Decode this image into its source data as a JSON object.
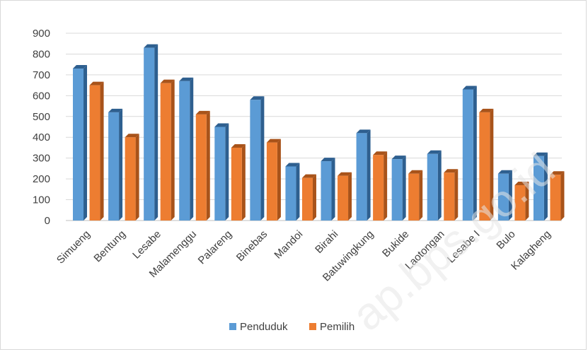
{
  "chart_data": {
    "type": "bar",
    "categories": [
      "Simueng",
      "Bentung",
      "Lesabe",
      "Malamenggu",
      "Palareng",
      "Binebas",
      "Mandoi",
      "Birahi",
      "Batuwingkung",
      "Bukide",
      "Laotongan",
      "Lesabe I",
      "Bulo",
      "Kalagheng"
    ],
    "series": [
      {
        "name": "Penduduk",
        "values": [
          730,
          520,
          830,
          670,
          450,
          580,
          260,
          285,
          420,
          295,
          320,
          630,
          225,
          310
        ],
        "color": "#5b9bd5",
        "side_color": "#2e5f8f"
      },
      {
        "name": "Pemilih",
        "values": [
          650,
          400,
          660,
          510,
          350,
          375,
          205,
          215,
          315,
          225,
          230,
          520,
          170,
          220
        ],
        "color": "#ed7d31",
        "side_color": "#a8531a"
      }
    ],
    "yticks": [
      0,
      100,
      200,
      300,
      400,
      500,
      600,
      700,
      800,
      900
    ],
    "ylim": [
      0,
      900
    ],
    "grid": true,
    "legend_position": "bottom",
    "title": "",
    "xlabel": "",
    "ylabel": ""
  },
  "watermark": "ap.bps.go.id"
}
